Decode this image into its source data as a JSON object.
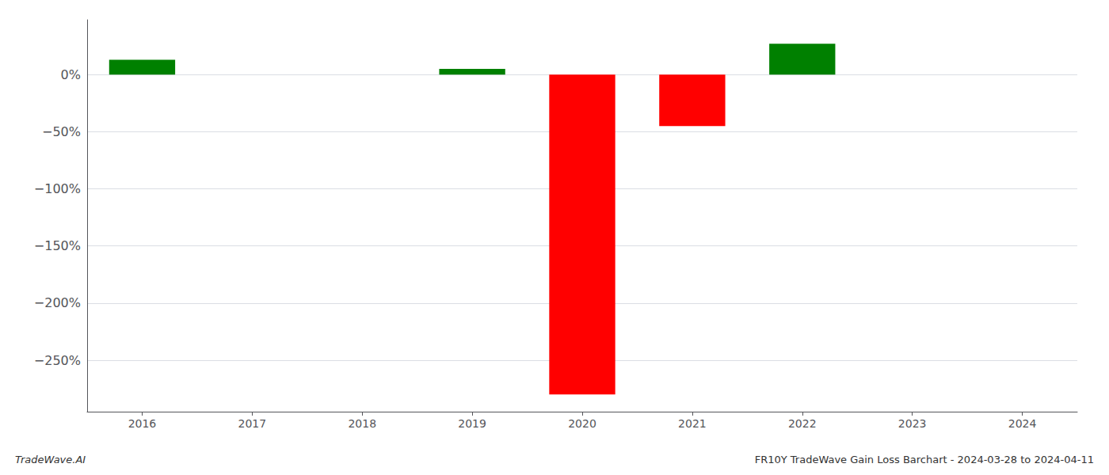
{
  "chart_data": {
    "type": "bar",
    "title": "FR10Y TradeWave Gain Loss Barchart - 2024-03-28 to 2024-04-11",
    "annotations": [
      "TradeWave.AI"
    ],
    "categories": [
      "2016",
      "2017",
      "2018",
      "2019",
      "2020",
      "2021",
      "2022",
      "2023",
      "2024"
    ],
    "values": [
      13.0,
      0.0,
      0.0,
      5.0,
      -280.0,
      -45.0,
      27.0,
      0.0,
      0.0
    ],
    "colors": [
      "#008000",
      "#008000",
      "#008000",
      "#008000",
      "#ff0000",
      "#ff0000",
      "#008000",
      "#008000",
      "#008000"
    ],
    "ylim": [
      -295,
      48
    ],
    "yticks": [
      {
        "value": 0,
        "label": "0%"
      },
      {
        "value": -50,
        "label": "−50%"
      },
      {
        "value": -100,
        "label": "−100%"
      },
      {
        "value": -150,
        "label": "−150%"
      },
      {
        "value": -200,
        "label": "−200%"
      },
      {
        "value": -250,
        "label": "−250%"
      }
    ],
    "grid": true
  }
}
